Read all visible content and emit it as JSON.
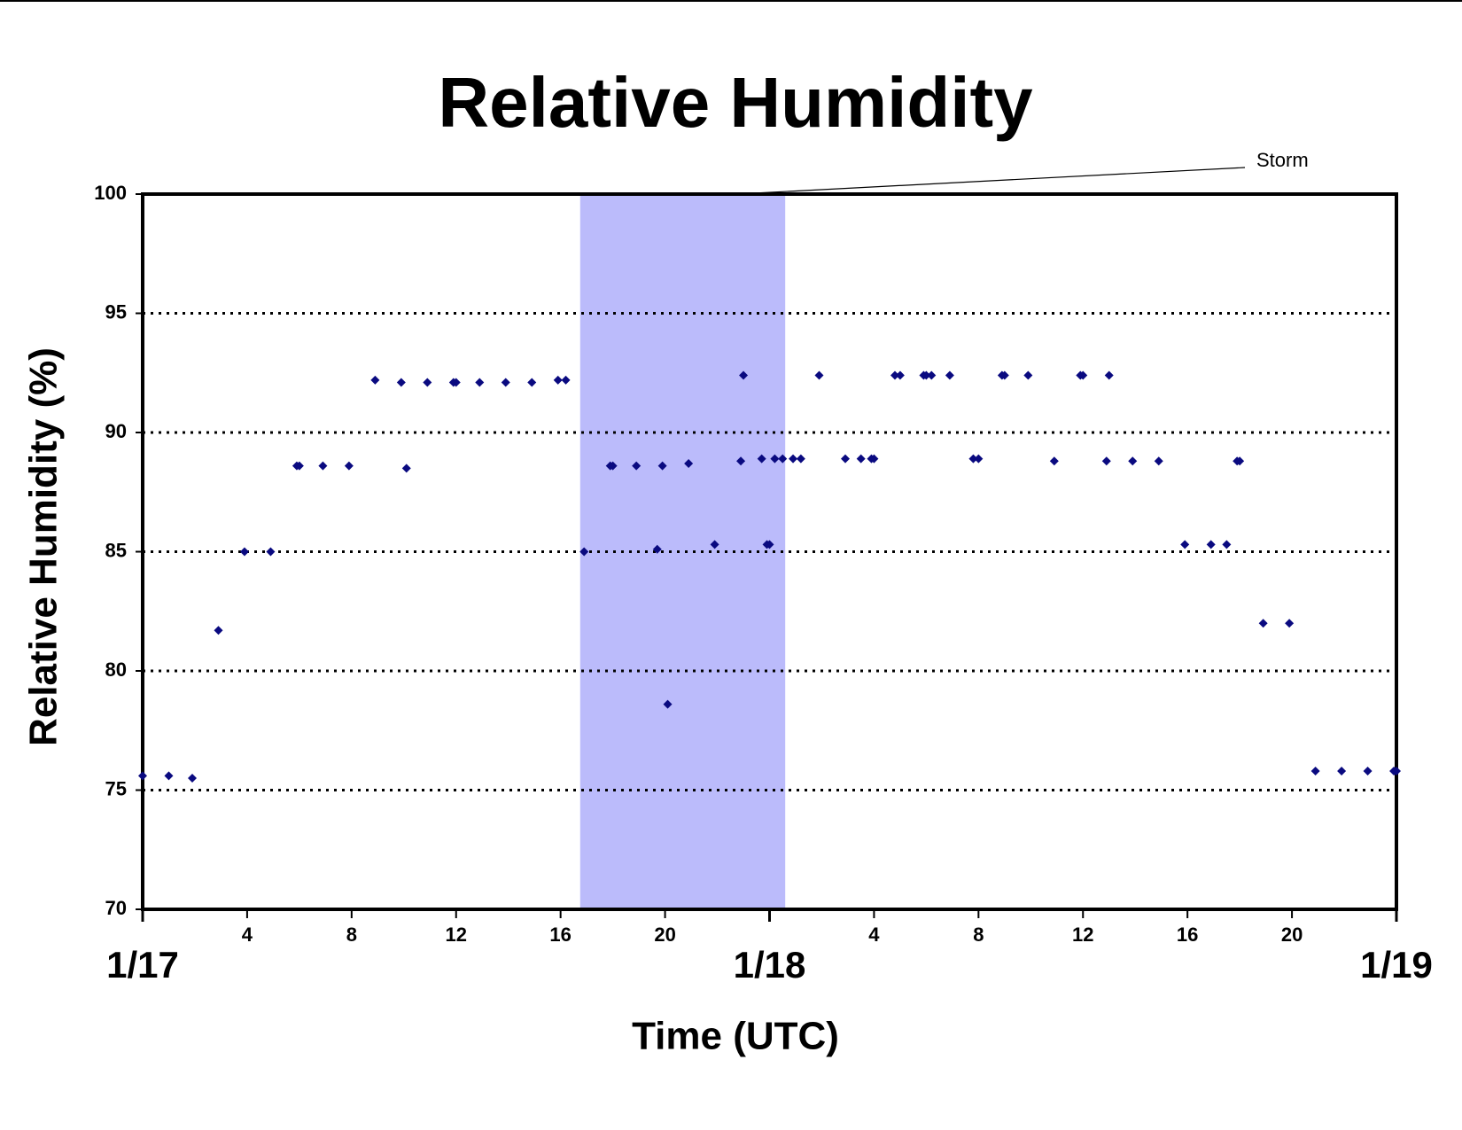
{
  "chart_data": {
    "type": "scatter",
    "title": "Relative Humidity",
    "xlabel": "Time (UTC)",
    "ylabel": "Relative Humidity (%)",
    "color": "#0a0a80",
    "x": [
      0,
      1,
      1.9,
      2.9,
      3.9,
      4.9,
      5.9,
      6,
      6.9,
      7.9,
      8.9,
      9.9,
      10.1,
      10.9,
      11.9,
      12,
      12.9,
      13.9,
      14.9,
      15.9,
      16.2,
      16.9,
      17.9,
      18,
      18.9,
      19.7,
      19.9,
      20.1,
      20.9,
      21.9,
      22.9,
      23,
      23.7,
      23.9,
      24,
      24.2,
      24.5,
      24.9,
      25.2,
      25.9,
      26.9,
      27.5,
      27.9,
      28,
      28.8,
      29,
      29.9,
      30,
      30.2,
      30.9,
      31.8,
      32,
      32.9,
      33,
      33.9,
      34.9,
      35.9,
      36,
      36.9,
      37,
      37.9,
      38.9,
      39.9,
      40.9,
      41.5,
      41.9,
      42,
      42.9,
      43.9,
      44.9,
      45.9,
      46.9,
      47.9,
      48
    ],
    "values": [
      75.6,
      75.6,
      75.5,
      81.7,
      85,
      85,
      88.6,
      88.6,
      88.6,
      88.6,
      92.2,
      92.1,
      88.5,
      92.1,
      92.1,
      92.1,
      92.1,
      92.1,
      92.1,
      92.2,
      92.2,
      85,
      88.6,
      88.6,
      88.6,
      85.1,
      88.6,
      78.6,
      88.7,
      85.3,
      88.8,
      92.4,
      88.9,
      85.3,
      85.3,
      88.9,
      88.9,
      88.9,
      88.9,
      92.4,
      88.9,
      88.9,
      88.9,
      88.9,
      92.4,
      92.4,
      92.4,
      92.4,
      92.4,
      92.4,
      88.9,
      88.9,
      92.4,
      92.4,
      92.4,
      88.8,
      92.4,
      92.4,
      88.8,
      92.4,
      88.8,
      88.8,
      85.3,
      85.3,
      85.3,
      88.8,
      88.8,
      82,
      82,
      75.8,
      75.8,
      75.8,
      75.8,
      75.8
    ],
    "xlim": [
      0,
      48
    ],
    "ylim": [
      70,
      100
    ],
    "yticks": [
      70,
      75,
      80,
      85,
      90,
      95,
      100
    ],
    "xticks": [
      4,
      8,
      12,
      16,
      20,
      {
        "value": 28,
        "label": "4"
      },
      {
        "value": 32,
        "label": "8"
      },
      {
        "value": 36,
        "label": "12"
      },
      {
        "value": 40,
        "label": "16"
      },
      {
        "value": 44,
        "label": "20"
      }
    ],
    "date_ticks": [
      {
        "value": 0,
        "label": "1/17"
      },
      {
        "value": 24,
        "label": "1/18"
      },
      {
        "value": 48,
        "label": "1/19"
      }
    ],
    "grid": true,
    "storm_span": [
      16.75,
      24.6
    ],
    "storm_color": "#bbbbfb",
    "annotation": "Storm"
  }
}
